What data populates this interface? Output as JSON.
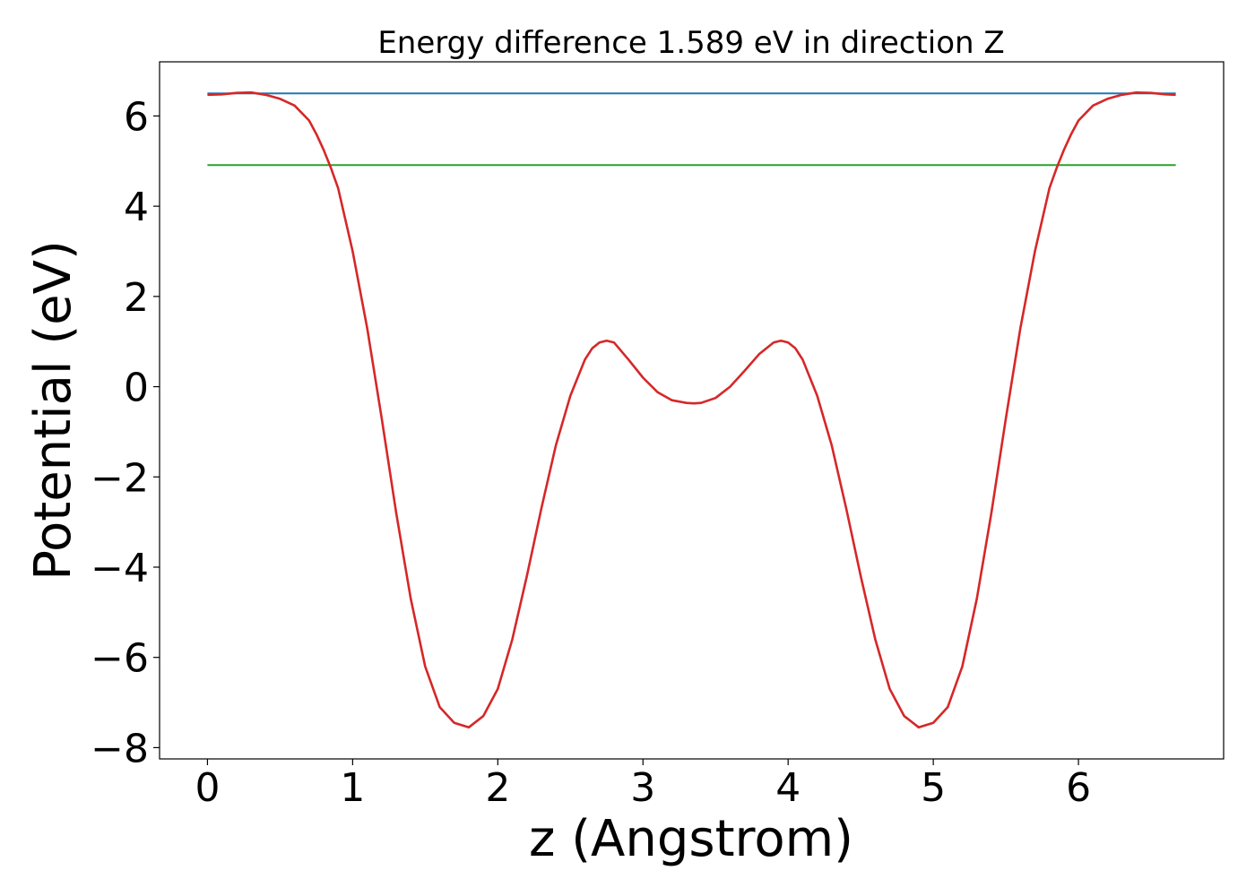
{
  "chart_data": {
    "type": "line",
    "title": "Energy difference 1.589 eV in direction Z",
    "xlabel": "z (Angstrom)",
    "ylabel": "Potential (eV)",
    "xlim": [
      -0.33,
      7.0
    ],
    "ylim": [
      -8.25,
      7.2
    ],
    "xticks": [
      0,
      1,
      2,
      3,
      4,
      5,
      6
    ],
    "xtick_labels": [
      "0",
      "1",
      "2",
      "3",
      "4",
      "5",
      "6"
    ],
    "yticks": [
      -8,
      -6,
      -4,
      -2,
      0,
      2,
      4,
      6
    ],
    "ytick_labels": [
      "−8",
      "−6",
      "−4",
      "−2",
      "0",
      "2",
      "4",
      "6"
    ],
    "grid": false,
    "series": [
      {
        "color": "#1f77b4",
        "x": [
          0,
          6.67
        ],
        "y": [
          6.5,
          6.5
        ]
      },
      {
        "color": "#2ca02c",
        "x": [
          0,
          6.67
        ],
        "y": [
          4.91,
          4.91
        ]
      },
      {
        "color": "#d62728",
        "x": [
          0,
          0.1,
          0.2,
          0.3,
          0.4,
          0.5,
          0.6,
          0.7,
          0.75,
          0.8,
          0.85,
          0.9,
          1.0,
          1.1,
          1.2,
          1.3,
          1.4,
          1.5,
          1.6,
          1.7,
          1.8,
          1.9,
          2.0,
          2.1,
          2.2,
          2.3,
          2.4,
          2.5,
          2.6,
          2.65,
          2.7,
          2.75,
          2.8,
          2.9,
          3.0,
          3.1,
          3.2,
          3.3,
          3.35,
          3.4,
          3.5,
          3.6,
          3.7,
          3.8,
          3.9,
          3.95,
          4.0,
          4.05,
          4.1,
          4.2,
          4.3,
          4.4,
          4.5,
          4.6,
          4.7,
          4.8,
          4.9,
          5.0,
          5.1,
          5.2,
          5.3,
          5.4,
          5.5,
          5.6,
          5.7,
          5.8,
          5.85,
          5.9,
          5.95,
          6.0,
          6.1,
          6.2,
          6.3,
          6.4,
          6.5,
          6.6,
          6.67
        ],
        "y": [
          6.47,
          6.48,
          6.51,
          6.52,
          6.47,
          6.38,
          6.23,
          5.9,
          5.6,
          5.25,
          4.85,
          4.4,
          3.0,
          1.3,
          -0.7,
          -2.8,
          -4.7,
          -6.2,
          -7.1,
          -7.45,
          -7.55,
          -7.3,
          -6.7,
          -5.6,
          -4.2,
          -2.7,
          -1.3,
          -0.2,
          0.6,
          0.85,
          0.98,
          1.02,
          0.98,
          0.6,
          0.2,
          -0.12,
          -0.3,
          -0.36,
          -0.37,
          -0.36,
          -0.25,
          0.0,
          0.35,
          0.72,
          0.98,
          1.02,
          0.98,
          0.85,
          0.6,
          -0.2,
          -1.3,
          -2.7,
          -4.2,
          -5.6,
          -6.7,
          -7.3,
          -7.55,
          -7.45,
          -7.1,
          -6.2,
          -4.7,
          -2.8,
          -0.7,
          1.3,
          3.0,
          4.4,
          4.85,
          5.25,
          5.6,
          5.9,
          6.23,
          6.38,
          6.47,
          6.52,
          6.51,
          6.48,
          6.47
        ]
      }
    ]
  }
}
